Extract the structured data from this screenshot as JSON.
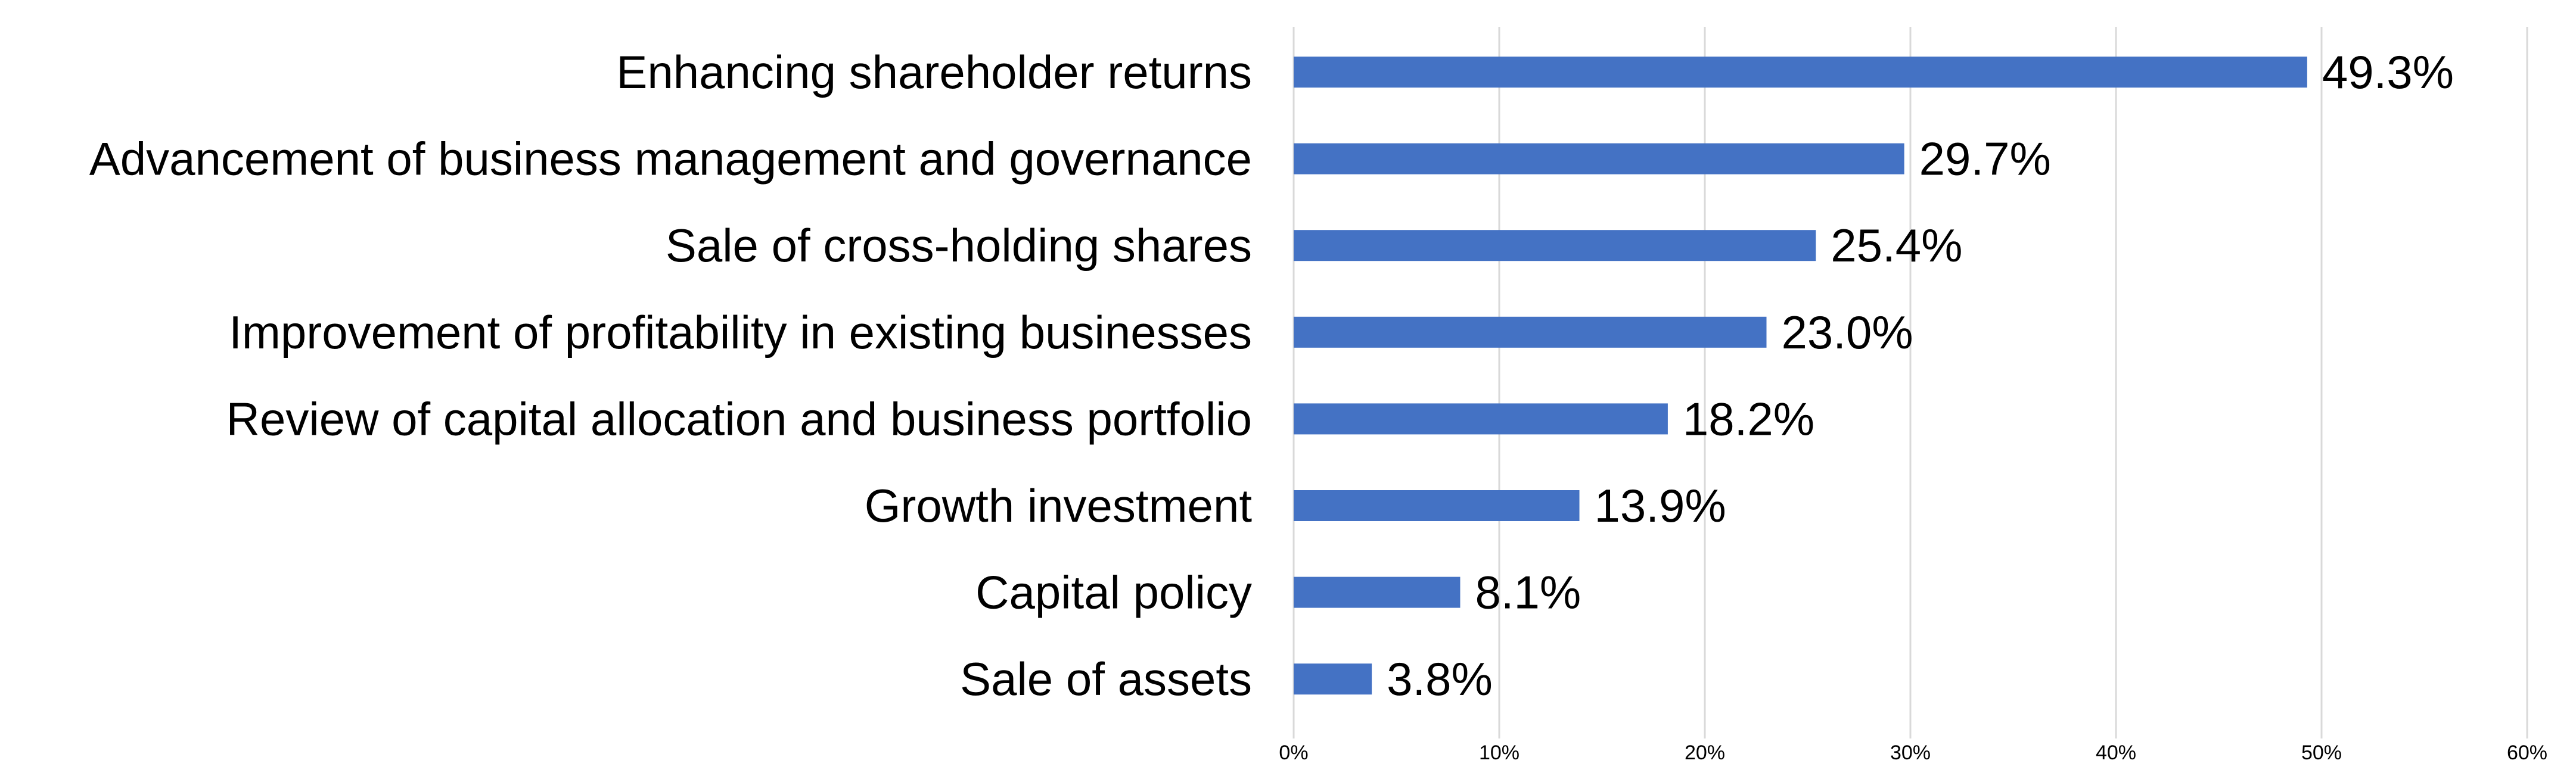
{
  "chart_data": {
    "type": "bar",
    "orientation": "horizontal",
    "categories": [
      "Enhancing shareholder returns",
      "Advancement of business management and governance",
      "Sale of cross-holding shares",
      "Improvement of profitability in existing businesses",
      "Review of capital allocation and business portfolio",
      "Growth investment",
      "Capital policy",
      "Sale of assets"
    ],
    "values": [
      49.3,
      29.7,
      25.4,
      23.0,
      18.2,
      13.9,
      8.1,
      3.8
    ],
    "value_labels": [
      "49.3%",
      "29.7%",
      "25.4%",
      "23.0%",
      "18.2%",
      "13.9%",
      "8.1%",
      "3.8%"
    ],
    "xlim": [
      0,
      60
    ],
    "xticks": [
      0,
      10,
      20,
      30,
      40,
      50,
      60
    ],
    "xtick_labels": [
      "0%",
      "10%",
      "20%",
      "30%",
      "40%",
      "50%",
      "60%"
    ],
    "title": "",
    "xlabel": "",
    "ylabel": "",
    "grid": "vertical",
    "legend": "none",
    "bar_color": "#4472c4"
  }
}
